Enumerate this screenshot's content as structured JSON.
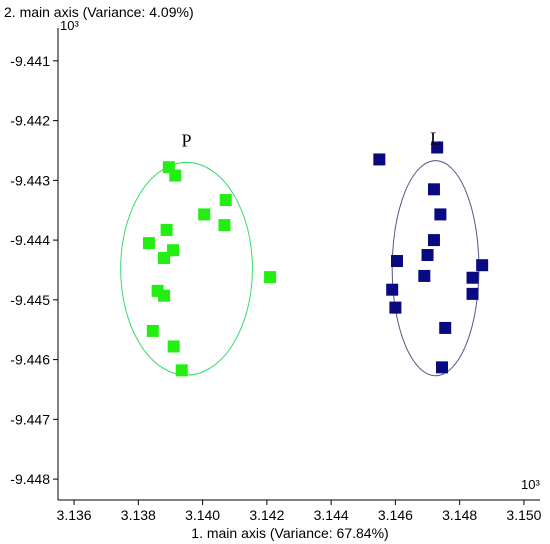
{
  "chart_data": {
    "type": "scatter",
    "title": "",
    "xlabel": "1. main axis (Variance: 67.84%)",
    "ylabel": "2. main axis (Variance: 4.09%)",
    "x_multiplier_label": "10³",
    "y_multiplier_label": "10³",
    "xlim": [
      3.1355,
      3.1505
    ],
    "ylim": [
      -9.44835,
      -9.44045
    ],
    "x_ticks": [
      3.136,
      3.138,
      3.14,
      3.142,
      3.144,
      3.146,
      3.148,
      3.15
    ],
    "x_tick_labels": [
      "3.136",
      "3.138",
      "3.140",
      "3.142",
      "3.144",
      "3.146",
      "3.148",
      "3.150"
    ],
    "y_ticks": [
      -9.441,
      -9.442,
      -9.443,
      -9.444,
      -9.445,
      -9.446,
      -9.447,
      -9.448
    ],
    "y_tick_labels": [
      "-9.441",
      "-9.442",
      "-9.443",
      "-9.444",
      "-9.445",
      "-9.446",
      "-9.447",
      "-9.448"
    ],
    "grid": false,
    "legend": "none",
    "series": [
      {
        "name": "P",
        "color": "#22ee11",
        "marker": "square",
        "points": [
          [
            3.13895,
            -9.44278
          ],
          [
            3.13915,
            -9.44292
          ],
          [
            3.14072,
            -9.44333
          ],
          [
            3.14005,
            -9.44357
          ],
          [
            3.14068,
            -9.44375
          ],
          [
            3.13888,
            -9.44383
          ],
          [
            3.13833,
            -9.44405
          ],
          [
            3.13908,
            -9.44417
          ],
          [
            3.1388,
            -9.4443
          ],
          [
            3.1421,
            -9.44462
          ],
          [
            3.1386,
            -9.44485
          ],
          [
            3.1388,
            -9.44493
          ],
          [
            3.13845,
            -9.44552
          ],
          [
            3.1391,
            -9.44578
          ],
          [
            3.13935,
            -9.44618
          ]
        ],
        "ellipse": {
          "cx": 3.1395,
          "cy": -9.44448,
          "rx": 0.00205,
          "ry": 0.00178
        }
      },
      {
        "name": "L",
        "color": "#0a0a80",
        "marker": "square",
        "points": [
          [
            3.1455,
            -9.44265
          ],
          [
            3.1473,
            -9.44245
          ],
          [
            3.1472,
            -9.44315
          ],
          [
            3.1474,
            -9.44357
          ],
          [
            3.1472,
            -9.444
          ],
          [
            3.147,
            -9.44425
          ],
          [
            3.14605,
            -9.44435
          ],
          [
            3.1487,
            -9.44442
          ],
          [
            3.1469,
            -9.4446
          ],
          [
            3.1484,
            -9.44463
          ],
          [
            3.1459,
            -9.44483
          ],
          [
            3.1484,
            -9.4449
          ],
          [
            3.146,
            -9.44513
          ],
          [
            3.14755,
            -9.44547
          ],
          [
            3.14745,
            -9.44613
          ]
        ],
        "ellipse": {
          "cx": 3.14725,
          "cy": -9.44447,
          "rx": 0.00135,
          "ry": 0.0018
        }
      }
    ]
  }
}
